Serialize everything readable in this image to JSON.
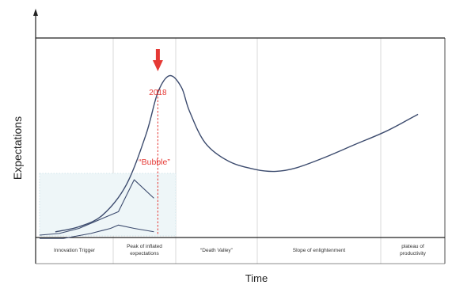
{
  "chart_data": {
    "type": "line",
    "title": "",
    "xlabel": "Time",
    "ylabel": "Expectations",
    "phases": [
      {
        "label": [
          "Innovation Trigger"
        ]
      },
      {
        "label": [
          "Peak of inflated",
          "expectations"
        ]
      },
      {
        "label": [
          "“Death Valley”"
        ]
      },
      {
        "label": [
          "Slope of enlightenment"
        ]
      },
      {
        "label": [
          "plateau of",
          "productivity"
        ]
      }
    ],
    "annotations": {
      "peak_year": "2018",
      "bubble": "“Bubble”"
    },
    "colors": {
      "curve": "#3c4b6e",
      "phase_divider": "#d8d8d8",
      "frame": "#222222",
      "annotation": "#e53935",
      "inset_fill": "#eef6f8"
    },
    "series": [
      {
        "x": [
          0.04,
          0.1,
          0.16,
          0.22,
          0.27,
          0.3,
          0.33,
          0.36,
          0.38,
          0.42,
          0.48,
          0.55,
          0.6,
          0.65,
          0.72,
          0.8,
          0.88,
          0.96
        ],
        "y": [
          0.02,
          0.05,
          0.12,
          0.3,
          0.6,
          0.85,
          0.95,
          0.88,
          0.74,
          0.55,
          0.44,
          0.39,
          0.38,
          0.4,
          0.46,
          0.54,
          0.62,
          0.72
        ]
      },
      {
        "x": [
          0.0,
          0.05,
          0.1,
          0.16,
          0.2,
          0.24,
          0.29
        ],
        "y": [
          0.0,
          0.01,
          0.04,
          0.1,
          0.14,
          0.33,
          0.22
        ]
      },
      {
        "x": [
          0.0,
          0.06,
          0.13,
          0.18,
          0.2,
          0.24,
          0.29
        ],
        "y": [
          -0.02,
          -0.02,
          0.01,
          0.04,
          0.06,
          0.04,
          0.02
        ]
      }
    ],
    "peak_year_x": 0.3
  }
}
